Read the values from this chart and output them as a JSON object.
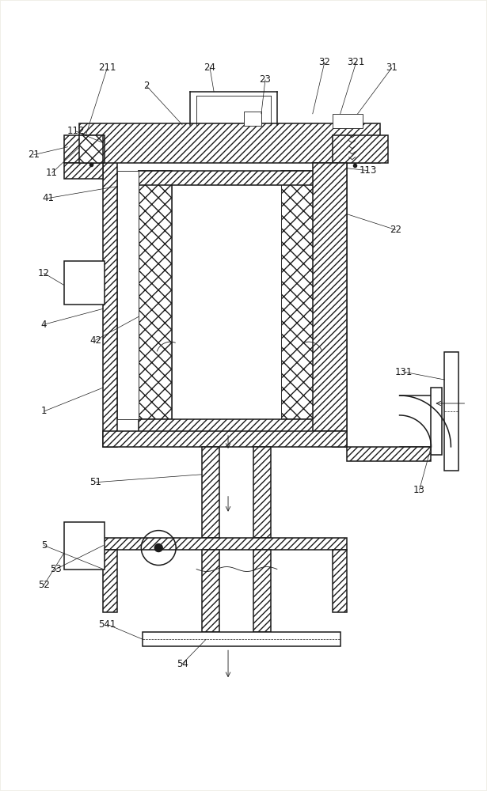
{
  "bg_color": "#f0efe8",
  "line_color": "#1a1a1a",
  "figsize": [
    6.15,
    10.0
  ],
  "dpi": 100,
  "lw_main": 1.1,
  "lw_thin": 0.6,
  "lw_label": 0.5
}
